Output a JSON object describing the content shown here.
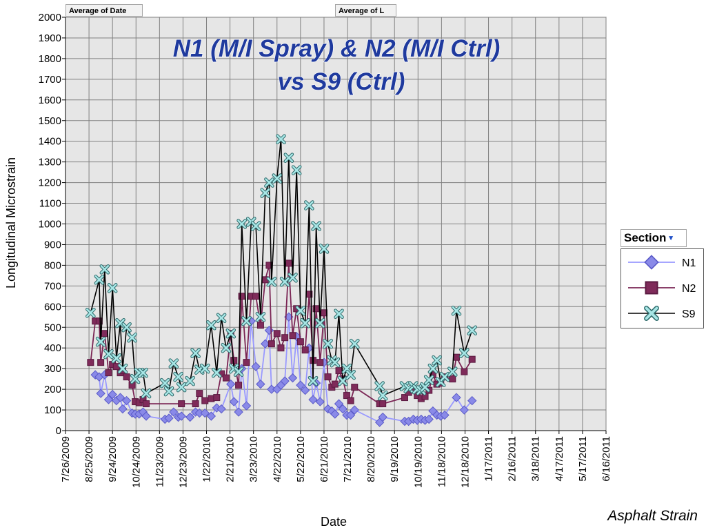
{
  "pivot_fields": {
    "date_button": "Average of Date",
    "value_button": "Average of L",
    "legend_header": "Section",
    "legend_dropdown_glyph": "▾"
  },
  "footer_caption": "Asphalt Strain",
  "colors": {
    "N1": "#9999ff",
    "N1_marker": "#8a8ae8",
    "N2": "#7a2454",
    "N2_marker": "#7f2b5a",
    "S9": "#000000",
    "S9_marker": "#a8e6e6",
    "plot_bg": "#e6e6e6",
    "grid": "#808080",
    "title": "#1f3a9e"
  },
  "chart_data": {
    "type": "line",
    "title_lines": [
      "N1 (M/I Spray) & N2 (M/I Ctrl)",
      "vs S9 (Ctrl)"
    ],
    "xlabel": "Date",
    "ylabel": "Longitudinal Microstrain",
    "ylim": [
      0,
      2000
    ],
    "y_ticks": [
      0,
      100,
      200,
      300,
      400,
      500,
      600,
      700,
      800,
      900,
      1000,
      1100,
      1200,
      1300,
      1400,
      1500,
      1600,
      1700,
      1800,
      1900,
      2000
    ],
    "xlim": [
      "2009-07-26",
      "2011-06-16"
    ],
    "x_ticks": [
      "2009-07-26",
      "2009-08-25",
      "2009-09-24",
      "2009-10-24",
      "2009-11-23",
      "2009-12-23",
      "2010-01-22",
      "2010-02-21",
      "2010-03-23",
      "2010-04-22",
      "2010-05-22",
      "2010-06-21",
      "2010-07-21",
      "2010-08-20",
      "2010-09-19",
      "2010-10-19",
      "2010-11-18",
      "2010-12-18",
      "2011-01-17",
      "2011-02-16",
      "2011-03-18",
      "2011-04-17",
      "2011-05-17",
      "2011-06-16"
    ],
    "x_tick_labels": [
      "7/26/2009",
      "8/25/2009",
      "9/24/2009",
      "10/24/2009",
      "11/23/2009",
      "12/23/2009",
      "1/22/2010",
      "2/21/2010",
      "3/23/2010",
      "4/22/2010",
      "5/22/2010",
      "6/21/2010",
      "7/21/2010",
      "8/20/2010",
      "9/19/2010",
      "10/19/2010",
      "11/18/2010",
      "12/18/2010",
      "1/17/2011",
      "2/16/2011",
      "3/18/2011",
      "4/17/2011",
      "5/17/2011",
      "6/16/2011"
    ],
    "grid": true,
    "legend_placement": "right",
    "series": [
      {
        "name": "N1",
        "marker": "diamond",
        "points": [
          [
            "2009-09-02",
            270
          ],
          [
            "2009-09-07",
            260
          ],
          [
            "2009-09-09",
            180
          ],
          [
            "2009-09-14",
            270
          ],
          [
            "2009-09-19",
            150
          ],
          [
            "2009-09-24",
            175
          ],
          [
            "2009-09-29",
            145
          ],
          [
            "2009-10-04",
            160
          ],
          [
            "2009-10-07",
            105
          ],
          [
            "2009-10-12",
            145
          ],
          [
            "2009-10-19",
            85
          ],
          [
            "2009-10-23",
            80
          ],
          [
            "2009-10-28",
            80
          ],
          [
            "2009-11-02",
            90
          ],
          [
            "2009-11-06",
            70
          ],
          [
            "2009-11-30",
            55
          ],
          [
            "2009-12-05",
            60
          ],
          [
            "2009-12-11",
            90
          ],
          [
            "2009-12-17",
            65
          ],
          [
            "2009-12-21",
            70
          ],
          [
            "2010-01-01",
            65
          ],
          [
            "2010-01-08",
            90
          ],
          [
            "2010-01-13",
            85
          ],
          [
            "2010-01-20",
            85
          ],
          [
            "2010-01-28",
            70
          ],
          [
            "2010-02-04",
            110
          ],
          [
            "2010-02-10",
            105
          ],
          [
            "2010-02-22",
            225
          ],
          [
            "2010-02-26",
            140
          ],
          [
            "2010-03-04",
            90
          ],
          [
            "2010-03-08",
            300
          ],
          [
            "2010-03-14",
            120
          ],
          [
            "2010-03-20",
            530
          ],
          [
            "2010-03-26",
            310
          ],
          [
            "2010-04-01",
            225
          ],
          [
            "2010-04-07",
            420
          ],
          [
            "2010-04-12",
            485
          ],
          [
            "2010-04-15",
            200
          ],
          [
            "2010-04-22",
            200
          ],
          [
            "2010-04-27",
            220
          ],
          [
            "2010-05-02",
            240
          ],
          [
            "2010-05-07",
            550
          ],
          [
            "2010-05-12",
            255
          ],
          [
            "2010-05-17",
            455
          ],
          [
            "2010-05-22",
            220
          ],
          [
            "2010-05-28",
            195
          ],
          [
            "2010-06-02",
            400
          ],
          [
            "2010-06-07",
            150
          ],
          [
            "2010-06-11",
            230
          ],
          [
            "2010-06-16",
            140
          ],
          [
            "2010-06-21",
            330
          ],
          [
            "2010-06-26",
            105
          ],
          [
            "2010-07-01",
            95
          ],
          [
            "2010-07-05",
            80
          ],
          [
            "2010-07-10",
            130
          ],
          [
            "2010-07-15",
            105
          ],
          [
            "2010-07-20",
            75
          ],
          [
            "2010-07-25",
            75
          ],
          [
            "2010-07-30",
            100
          ],
          [
            "2010-08-31",
            40
          ],
          [
            "2010-09-04",
            65
          ],
          [
            "2010-10-02",
            45
          ],
          [
            "2010-10-07",
            45
          ],
          [
            "2010-10-13",
            55
          ],
          [
            "2010-10-18",
            50
          ],
          [
            "2010-10-23",
            55
          ],
          [
            "2010-10-28",
            50
          ],
          [
            "2010-11-02",
            55
          ],
          [
            "2010-11-07",
            95
          ],
          [
            "2010-11-12",
            75
          ],
          [
            "2010-11-17",
            70
          ],
          [
            "2010-11-22",
            75
          ],
          [
            "2010-12-07",
            160
          ],
          [
            "2010-12-17",
            100
          ],
          [
            "2010-12-27",
            145
          ]
        ]
      },
      {
        "name": "N2",
        "marker": "square",
        "points": [
          [
            "2009-08-27",
            330
          ],
          [
            "2009-09-02",
            530
          ],
          [
            "2009-09-07",
            530
          ],
          [
            "2009-09-09",
            330
          ],
          [
            "2009-09-14",
            470
          ],
          [
            "2009-09-19",
            280
          ],
          [
            "2009-09-24",
            320
          ],
          [
            "2009-09-29",
            310
          ],
          [
            "2009-10-04",
            280
          ],
          [
            "2009-10-07",
            290
          ],
          [
            "2009-10-12",
            260
          ],
          [
            "2009-10-19",
            220
          ],
          [
            "2009-10-23",
            140
          ],
          [
            "2009-10-28",
            135
          ],
          [
            "2009-11-02",
            150
          ],
          [
            "2009-11-06",
            130
          ],
          [
            "2009-12-21",
            130
          ],
          [
            "2010-01-08",
            130
          ],
          [
            "2010-01-13",
            180
          ],
          [
            "2010-01-20",
            145
          ],
          [
            "2010-01-28",
            155
          ],
          [
            "2010-02-04",
            160
          ],
          [
            "2010-02-10",
            275
          ],
          [
            "2010-02-16",
            255
          ],
          [
            "2010-02-22",
            470
          ],
          [
            "2010-02-26",
            340
          ],
          [
            "2010-03-04",
            220
          ],
          [
            "2010-03-08",
            650
          ],
          [
            "2010-03-14",
            330
          ],
          [
            "2010-03-20",
            650
          ],
          [
            "2010-03-26",
            650
          ],
          [
            "2010-04-01",
            510
          ],
          [
            "2010-04-07",
            730
          ],
          [
            "2010-04-12",
            800
          ],
          [
            "2010-04-15",
            420
          ],
          [
            "2010-04-22",
            470
          ],
          [
            "2010-04-27",
            400
          ],
          [
            "2010-05-02",
            450
          ],
          [
            "2010-05-07",
            810
          ],
          [
            "2010-05-12",
            460
          ],
          [
            "2010-05-17",
            590
          ],
          [
            "2010-05-22",
            430
          ],
          [
            "2010-05-28",
            390
          ],
          [
            "2010-06-02",
            660
          ],
          [
            "2010-06-07",
            340
          ],
          [
            "2010-06-11",
            590
          ],
          [
            "2010-06-16",
            330
          ],
          [
            "2010-06-21",
            570
          ],
          [
            "2010-06-26",
            260
          ],
          [
            "2010-07-01",
            210
          ],
          [
            "2010-07-05",
            225
          ],
          [
            "2010-07-10",
            290
          ],
          [
            "2010-07-15",
            250
          ],
          [
            "2010-07-20",
            170
          ],
          [
            "2010-07-25",
            145
          ],
          [
            "2010-07-30",
            210
          ],
          [
            "2010-08-31",
            130
          ],
          [
            "2010-09-04",
            130
          ],
          [
            "2010-10-02",
            160
          ],
          [
            "2010-10-07",
            185
          ],
          [
            "2010-10-13",
            200
          ],
          [
            "2010-10-18",
            170
          ],
          [
            "2010-10-23",
            155
          ],
          [
            "2010-10-28",
            165
          ],
          [
            "2010-11-02",
            195
          ],
          [
            "2010-11-07",
            270
          ],
          [
            "2010-11-12",
            225
          ],
          [
            "2010-11-17",
            230
          ],
          [
            "2010-11-22",
            260
          ],
          [
            "2010-12-02",
            250
          ],
          [
            "2010-12-07",
            355
          ],
          [
            "2010-12-17",
            285
          ],
          [
            "2010-12-27",
            345
          ]
        ]
      },
      {
        "name": "S9",
        "marker": "x",
        "points": [
          [
            "2009-08-27",
            570
          ],
          [
            "2009-09-07",
            730
          ],
          [
            "2009-09-09",
            430
          ],
          [
            "2009-09-14",
            780
          ],
          [
            "2009-09-19",
            370
          ],
          [
            "2009-09-24",
            690
          ],
          [
            "2009-09-29",
            350
          ],
          [
            "2009-10-04",
            520
          ],
          [
            "2009-10-07",
            300
          ],
          [
            "2009-10-12",
            500
          ],
          [
            "2009-10-19",
            450
          ],
          [
            "2009-10-23",
            250
          ],
          [
            "2009-10-28",
            280
          ],
          [
            "2009-11-02",
            280
          ],
          [
            "2009-11-06",
            180
          ],
          [
            "2009-11-30",
            230
          ],
          [
            "2009-12-05",
            190
          ],
          [
            "2009-12-11",
            325
          ],
          [
            "2009-12-17",
            260
          ],
          [
            "2009-12-21",
            210
          ],
          [
            "2010-01-01",
            240
          ],
          [
            "2010-01-08",
            375
          ],
          [
            "2010-01-13",
            295
          ],
          [
            "2010-01-20",
            300
          ],
          [
            "2010-01-28",
            510
          ],
          [
            "2010-02-04",
            280
          ],
          [
            "2010-02-10",
            545
          ],
          [
            "2010-02-16",
            400
          ],
          [
            "2010-02-22",
            470
          ],
          [
            "2010-02-26",
            300
          ],
          [
            "2010-03-04",
            285
          ],
          [
            "2010-03-08",
            1000
          ],
          [
            "2010-03-14",
            530
          ],
          [
            "2010-03-20",
            1010
          ],
          [
            "2010-03-26",
            990
          ],
          [
            "2010-04-01",
            550
          ],
          [
            "2010-04-07",
            1150
          ],
          [
            "2010-04-12",
            1200
          ],
          [
            "2010-04-15",
            720
          ],
          [
            "2010-04-22",
            1220
          ],
          [
            "2010-04-27",
            1410
          ],
          [
            "2010-05-02",
            720
          ],
          [
            "2010-05-07",
            1320
          ],
          [
            "2010-05-12",
            740
          ],
          [
            "2010-05-17",
            1260
          ],
          [
            "2010-05-22",
            580
          ],
          [
            "2010-05-28",
            520
          ],
          [
            "2010-06-02",
            1090
          ],
          [
            "2010-06-07",
            240
          ],
          [
            "2010-06-11",
            990
          ],
          [
            "2010-06-16",
            520
          ],
          [
            "2010-06-21",
            880
          ],
          [
            "2010-06-26",
            420
          ],
          [
            "2010-07-01",
            340
          ],
          [
            "2010-07-05",
            330
          ],
          [
            "2010-07-10",
            565
          ],
          [
            "2010-07-15",
            240
          ],
          [
            "2010-07-20",
            300
          ],
          [
            "2010-07-25",
            270
          ],
          [
            "2010-07-30",
            420
          ],
          [
            "2010-08-31",
            215
          ],
          [
            "2010-09-04",
            170
          ],
          [
            "2010-10-02",
            215
          ],
          [
            "2010-10-07",
            205
          ],
          [
            "2010-10-13",
            215
          ],
          [
            "2010-10-18",
            200
          ],
          [
            "2010-10-23",
            195
          ],
          [
            "2010-10-28",
            210
          ],
          [
            "2010-11-02",
            245
          ],
          [
            "2010-11-07",
            300
          ],
          [
            "2010-11-12",
            340
          ],
          [
            "2010-11-17",
            235
          ],
          [
            "2010-11-22",
            260
          ],
          [
            "2010-12-02",
            285
          ],
          [
            "2010-12-07",
            580
          ],
          [
            "2010-12-17",
            375
          ],
          [
            "2010-12-27",
            485
          ]
        ]
      }
    ]
  }
}
